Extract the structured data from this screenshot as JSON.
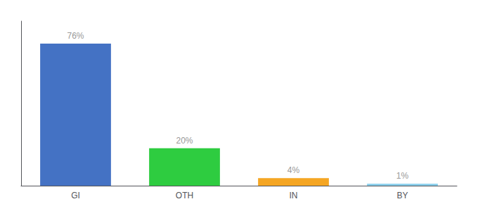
{
  "chart_data": {
    "type": "bar",
    "categories": [
      "GI",
      "OTH",
      "IN",
      "BY"
    ],
    "values": [
      76,
      20,
      4,
      1
    ],
    "value_labels": [
      "76%",
      "20%",
      "4%",
      "1%"
    ],
    "colors": [
      "#4472c4",
      "#2ecc40",
      "#f5a623",
      "#87ceeb"
    ],
    "ylim": [
      0,
      88
    ],
    "data_labels": true,
    "tick_labels": "x",
    "grid": false
  }
}
